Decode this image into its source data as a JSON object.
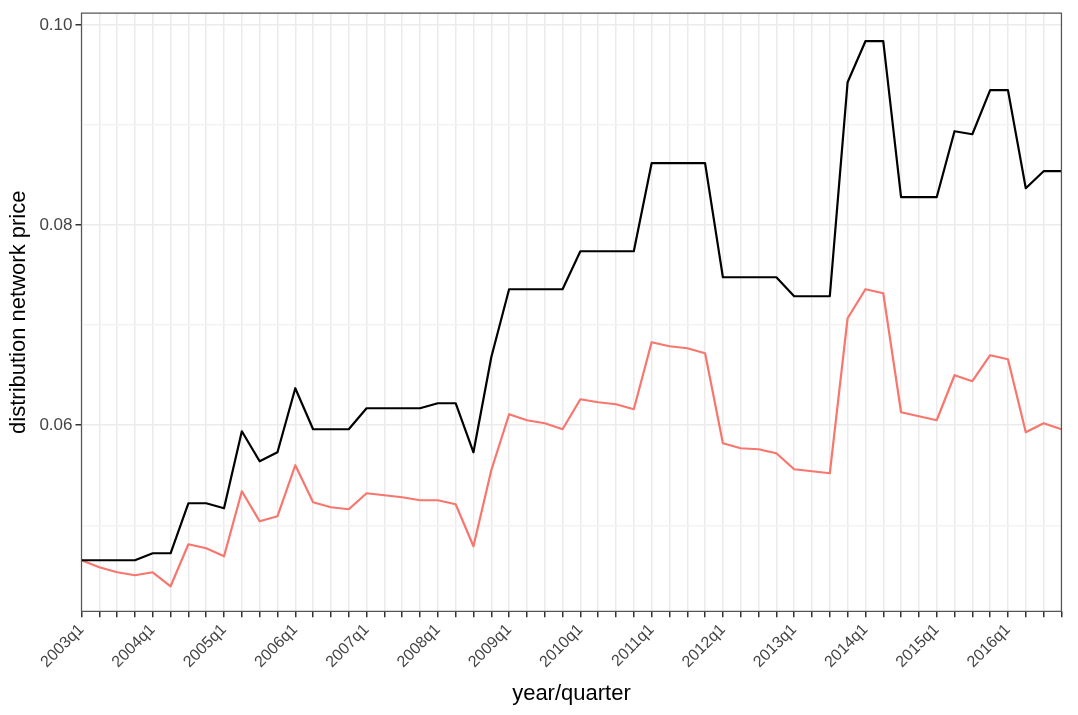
{
  "chart_data": {
    "type": "line",
    "xlabel": "year/quarter",
    "ylabel": "distribution network price",
    "categories": [
      "2003q1",
      null,
      null,
      null,
      "2004q1",
      null,
      null,
      null,
      "2005q1",
      null,
      null,
      null,
      "2006q1",
      null,
      null,
      null,
      "2007q1",
      null,
      null,
      null,
      "2008q1",
      null,
      null,
      null,
      "2009q1",
      null,
      null,
      null,
      "2010q1",
      null,
      null,
      null,
      "2011q1",
      null,
      null,
      null,
      "2012q1",
      null,
      null,
      null,
      "2013q1",
      null,
      null,
      null,
      "2014q1",
      null,
      null,
      null,
      "2015q1",
      null,
      null,
      null,
      "2016q1",
      null,
      null,
      null
    ],
    "series": [
      {
        "color": "#000000",
        "values": [
          0.0465,
          0.0465,
          0.0465,
          0.0465,
          0.0472,
          0.0472,
          0.0522,
          0.0522,
          0.0517,
          0.0594,
          0.0564,
          0.0573,
          0.0637,
          0.0596,
          0.0596,
          0.0596,
          0.0617,
          0.0617,
          0.0617,
          0.0617,
          0.0622,
          0.0622,
          0.0573,
          0.0668,
          0.0736,
          0.0736,
          0.0736,
          0.0736,
          0.0774,
          0.0774,
          0.0774,
          0.0774,
          0.0862,
          0.0862,
          0.0862,
          0.0862,
          0.0748,
          0.0748,
          0.0748,
          0.0748,
          0.0729,
          0.0729,
          0.0729,
          0.0943,
          0.0984,
          0.0984,
          0.0828,
          0.0828,
          0.0828,
          0.0894,
          0.0891,
          0.0935,
          0.0935,
          0.0837,
          0.0854,
          0.0854
        ]
      },
      {
        "color": "#f8766d",
        "values": [
          0.0465,
          0.0458,
          0.0453,
          0.045,
          0.0453,
          0.0439,
          0.0481,
          0.0477,
          0.0469,
          0.0534,
          0.0504,
          0.0509,
          0.056,
          0.0523,
          0.0518,
          0.0516,
          0.0532,
          0.053,
          0.0528,
          0.0525,
          0.0525,
          0.0521,
          0.0479,
          0.0555,
          0.0611,
          0.0605,
          0.0602,
          0.0596,
          0.0626,
          0.0623,
          0.0621,
          0.0616,
          0.0683,
          0.0679,
          0.0677,
          0.0672,
          0.0582,
          0.0577,
          0.0576,
          0.0572,
          0.0556,
          0.0554,
          0.0552,
          0.0707,
          0.0736,
          0.0732,
          0.0613,
          0.0609,
          0.0605,
          0.065,
          0.0644,
          0.067,
          0.0666,
          0.0593,
          0.0602,
          0.0596
        ]
      }
    ],
    "ylim": [
      0.0414,
      0.1012
    ],
    "yticks": [
      {
        "value": 0.05,
        "label": null
      },
      {
        "value": 0.06,
        "label": "0.06"
      },
      {
        "value": 0.07,
        "label": null
      },
      {
        "value": 0.08,
        "label": "0.08"
      },
      {
        "value": 0.09,
        "label": null
      },
      {
        "value": 0.1,
        "label": "0.10"
      }
    ],
    "grid": true,
    "legend": false,
    "marker": "none",
    "line_style": "solid"
  }
}
